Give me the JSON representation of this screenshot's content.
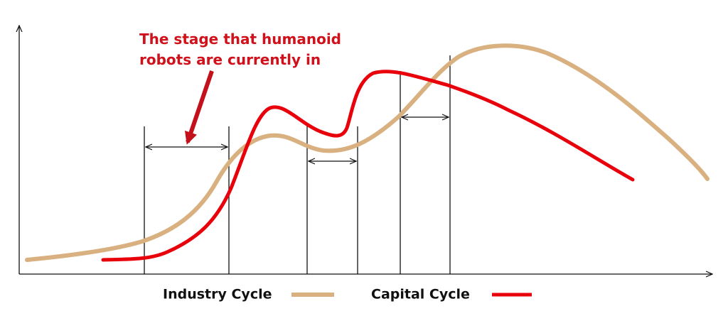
{
  "annotation": {
    "lines": [
      "The stage that humanoid",
      "robots are currently in"
    ]
  },
  "legend": [
    {
      "label": "Industry Cycle"
    },
    {
      "label": "Capital Cycle"
    }
  ]
}
